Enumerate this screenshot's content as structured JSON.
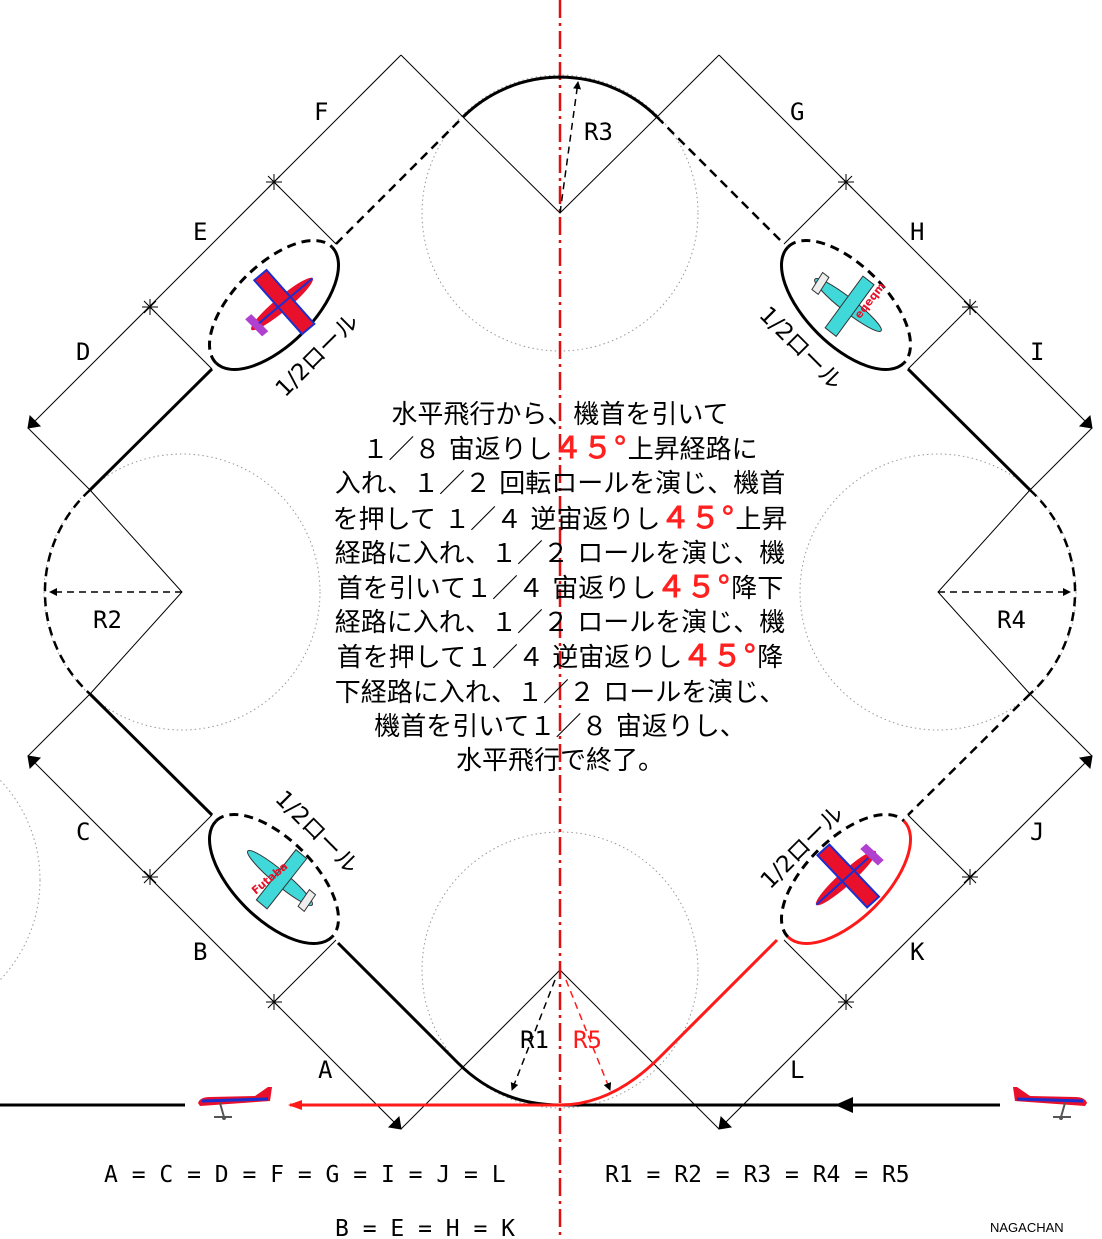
{
  "segment_labels": {
    "A": "A",
    "B": "B",
    "C": "C",
    "D": "D",
    "E": "E",
    "F": "F",
    "G": "G",
    "H": "H",
    "I": "I",
    "J": "J",
    "K": "K",
    "L": "L"
  },
  "radius_labels": {
    "r1": "R1",
    "r2": "R2",
    "r3": "R3",
    "r4": "R4",
    "r5": "R5"
  },
  "roll_label": "1/2ロール",
  "description": {
    "lines": [
      [
        {
          "t": "水平飛行から、機首を引いて"
        }
      ],
      [
        {
          "t": "１／８ 宙返りし"
        },
        {
          "t": "４５°",
          "hl": true
        },
        {
          "t": "上昇経路に"
        }
      ],
      [
        {
          "t": "入れ、１／２ 回転ロールを演じ、機首"
        }
      ],
      [
        {
          "t": "を押して １／４ 逆宙返りし"
        },
        {
          "t": "４５°",
          "hl": true
        },
        {
          "t": "上昇"
        }
      ],
      [
        {
          "t": "経路に入れ、１／２ ロールを演じ、機"
        }
      ],
      [
        {
          "t": "首を引いて１／４ 宙返りし"
        },
        {
          "t": "４５°",
          "hl": true
        },
        {
          "t": "降下"
        }
      ],
      [
        {
          "t": "経路に入れ、１／２ ロールを演じ、機"
        }
      ],
      [
        {
          "t": "首を押して１／４ 逆宙返りし"
        },
        {
          "t": "４５°",
          "hl": true
        },
        {
          "t": "降"
        }
      ],
      [
        {
          "t": "下経路に入れ、１／２ ロールを演じ、"
        }
      ],
      [
        {
          "t": "機首を引いて１／８ 宙返りし、"
        }
      ],
      [
        {
          "t": "水平飛行で終了。"
        }
      ]
    ]
  },
  "formulas": {
    "segments_long": "A = C = D = F = G = I = J = L",
    "radii": "R1 = R2 = R3 = R4 = R5",
    "segments_short": "B = E = H = K"
  },
  "plane_logos": {
    "top_right": "eqeqm",
    "bottom_left": "Futaba"
  },
  "credit": "NAGACHAN",
  "colors": {
    "path": "#000000",
    "exit_path": "#ff1a1a",
    "centerline": "#e01010",
    "guide_circle": "#999999",
    "plane_red": "#e8102a",
    "plane_blue": "#1a2fd0",
    "plane_cyan": "#40d8d8",
    "plane_purple": "#b040d0"
  }
}
